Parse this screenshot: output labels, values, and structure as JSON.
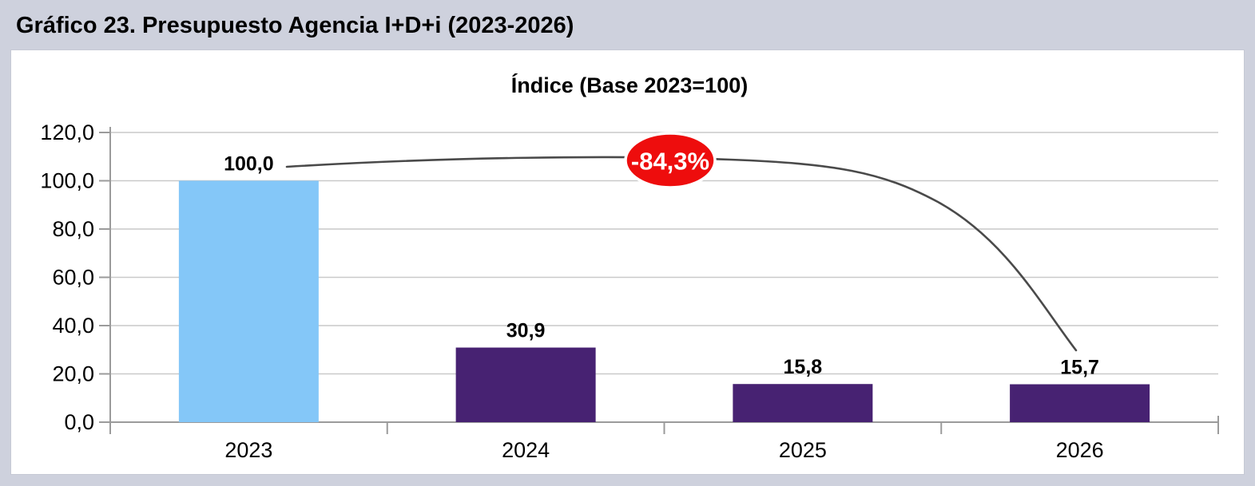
{
  "page": {
    "title": "Gráfico 23. Presupuesto Agencia I+D+i (2023-2026)"
  },
  "chart_data": {
    "type": "bar",
    "title": "Índice (Base 2023=100)",
    "categories": [
      "2023",
      "2024",
      "2025",
      "2026"
    ],
    "values": [
      100.0,
      30.9,
      15.8,
      15.7
    ],
    "value_labels": [
      "100,0",
      "30,9",
      "15,8",
      "15,7"
    ],
    "bar_colors": [
      "#84c7f8",
      "#472272",
      "#472272",
      "#472272"
    ],
    "xlabel": "",
    "ylabel": "",
    "ylim": [
      0,
      120
    ],
    "yticks": [
      0,
      20,
      40,
      60,
      80,
      100,
      120
    ],
    "ytick_labels": [
      "0,0",
      "20,0",
      "40,0",
      "60,0",
      "80,0",
      "100,0",
      "120,0"
    ],
    "grid": true,
    "legend": "none",
    "annotation": {
      "label": "-84,3%",
      "shape": "ellipse",
      "fill": "#ee0d0d",
      "stroke": "#ffffff",
      "text_color": "#ffffff",
      "connector": {
        "from": "2023",
        "to": "2026",
        "style": "curved-line"
      }
    },
    "colors": {
      "gridline": "#c9c9c9",
      "axis": "#9b9b9b",
      "curve": "#4a4a4a",
      "text": "#000000",
      "panel_background": "#ffffff",
      "page_background": "#ced1dd"
    }
  }
}
